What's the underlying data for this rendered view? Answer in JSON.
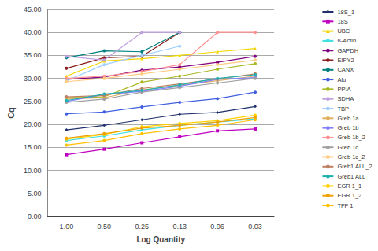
{
  "chart_data": {
    "type": "line",
    "x_label": "Log Quantity",
    "y_label": "Cq",
    "categories": [
      "1.00",
      "0.50",
      "0.25",
      "0.13",
      "0.06",
      "0.03"
    ],
    "ylim": [
      0,
      45
    ],
    "yticks": [
      {
        "value": 0,
        "label": "0.00"
      },
      {
        "value": 5,
        "label": "5.00"
      },
      {
        "value": 10,
        "label": "10.00"
      },
      {
        "value": 15,
        "label": "15.00"
      },
      {
        "value": 20,
        "label": "20.00"
      },
      {
        "value": 25,
        "label": "25.00"
      },
      {
        "value": 30,
        "label": "30.00"
      },
      {
        "value": 35,
        "label": "35.00"
      },
      {
        "value": 40,
        "label": "40.00"
      },
      {
        "value": 45,
        "label": "45.00"
      }
    ],
    "grid": true,
    "legend": "right",
    "series": [
      {
        "name": "18S_1",
        "color": "#1f2f6b",
        "marker": "diamond",
        "values": [
          18.8,
          19.8,
          21.0,
          22.2,
          22.6,
          23.9
        ]
      },
      {
        "name": "18S",
        "color": "#c000c0",
        "marker": "square",
        "values": [
          13.4,
          14.6,
          16.0,
          17.3,
          18.6,
          19.0
        ]
      },
      {
        "name": "UBC",
        "color": "#f2d600",
        "marker": "triangle",
        "values": [
          30.5,
          33.8,
          34.3,
          35.0,
          35.8,
          36.5
        ]
      },
      {
        "name": "ß-Actin",
        "color": "#40e0e0",
        "marker": "circle",
        "values": [
          16.5,
          17.5,
          18.8,
          19.8,
          20.5,
          21.2
        ]
      },
      {
        "name": "GAPDH",
        "color": "#800080",
        "marker": "circle",
        "values": [
          29.8,
          30.3,
          31.8,
          32.5,
          33.5,
          34.8
        ]
      },
      {
        "name": "EIPY2",
        "color": "#8b1a1a",
        "marker": "circle",
        "values": [
          32.2,
          34.5,
          34.8,
          40.0,
          null,
          null
        ]
      },
      {
        "name": "CANX",
        "color": "#008080",
        "marker": "circle",
        "values": [
          34.5,
          36.0,
          35.8,
          40.0,
          null,
          null
        ]
      },
      {
        "name": "Alu",
        "color": "#4060e0",
        "marker": "circle",
        "values": [
          22.3,
          22.7,
          23.8,
          24.8,
          25.6,
          27.0
        ]
      },
      {
        "name": "PPIA",
        "color": "#a8b820",
        "marker": "circle",
        "values": [
          25.8,
          26.0,
          29.2,
          30.5,
          32.0,
          33.2
        ]
      },
      {
        "name": "SDHA",
        "color": "#c0a0e0",
        "marker": "circle",
        "values": [
          34.8,
          34.0,
          40.0,
          40.0,
          null,
          null
        ]
      },
      {
        "name": "TBP",
        "color": "#a0d0ff",
        "marker": "circle",
        "values": [
          29.5,
          33.0,
          35.0,
          37.0,
          null,
          null
        ]
      },
      {
        "name": "Greb 1a",
        "color": "#e0b060",
        "marker": "circle",
        "values": [
          25.5,
          25.8,
          27.5,
          28.5,
          29.5,
          30.5
        ]
      },
      {
        "name": "Greb 1b",
        "color": "#8080ff",
        "marker": "circle",
        "values": [
          25.0,
          26.5,
          27.2,
          28.3,
          29.8,
          30.2
        ]
      },
      {
        "name": "Greb 1b_2",
        "color": "#ff9090",
        "marker": "circle",
        "values": [
          30.0,
          30.5,
          31.5,
          33.0,
          40.0,
          40.0
        ]
      },
      {
        "name": "Greb 1c",
        "color": "#a0a0a0",
        "marker": "circle",
        "values": [
          24.8,
          25.5,
          27.0,
          28.0,
          29.0,
          30.0
        ]
      },
      {
        "name": "Greb 1c_2",
        "color": "#ffcc80",
        "marker": "circle",
        "values": [
          29.3,
          30.0,
          31.0,
          32.0,
          33.0,
          34.0
        ]
      },
      {
        "name": "Greb1 ALL_2",
        "color": "#c08060",
        "marker": "circle",
        "values": [
          26.0,
          26.3,
          27.8,
          28.8,
          29.9,
          31.0
        ]
      },
      {
        "name": "Greb1 ALL",
        "color": "#20b0b0",
        "marker": "circle",
        "values": [
          25.2,
          26.6,
          27.4,
          28.6,
          30.0,
          30.8
        ]
      },
      {
        "name": "EGR 1_1",
        "color": "#ffd000",
        "marker": "circle",
        "values": [
          16.8,
          17.8,
          19.5,
          20.2,
          20.8,
          22.0
        ]
      },
      {
        "name": "EGR 1_2",
        "color": "#f0a000",
        "marker": "circle",
        "values": [
          17.0,
          18.0,
          19.2,
          19.8,
          20.5,
          21.5
        ]
      },
      {
        "name": "TFF 1",
        "color": "#ffc000",
        "marker": "circle",
        "values": [
          15.5,
          16.5,
          18.0,
          19.0,
          19.8,
          21.0
        ]
      }
    ]
  }
}
